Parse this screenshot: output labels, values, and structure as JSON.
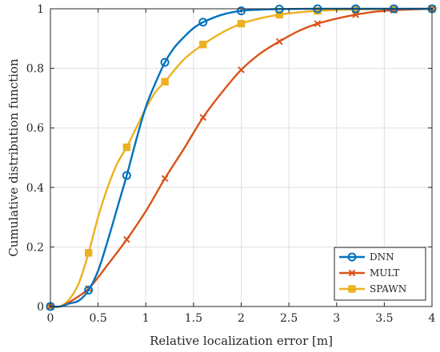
{
  "chart_data": {
    "type": "line",
    "title": "",
    "xlabel": "Relative localization error [m]",
    "ylabel": "Cumulative distribution function",
    "xlim": [
      0,
      4
    ],
    "ylim": [
      0,
      1
    ],
    "xticks": [
      0,
      0.5,
      1,
      1.5,
      2,
      2.5,
      3,
      3.5,
      4
    ],
    "xtick_labels": [
      "0",
      "0.5",
      "1",
      "1.5",
      "2",
      "2.5",
      "3",
      "3.5",
      "4"
    ],
    "yticks": [
      0,
      0.2,
      0.4,
      0.6,
      0.8,
      1
    ],
    "ytick_labels": [
      "0",
      "0.2",
      "0.4",
      "0.6",
      "0.8",
      "1"
    ],
    "grid": true,
    "legend_position": "bottom-right",
    "series": [
      {
        "name": "DNN",
        "color": "#0072BD",
        "marker": "circle",
        "x": [
          0,
          0.1,
          0.2,
          0.3,
          0.4,
          0.5,
          0.6,
          0.7,
          0.8,
          0.9,
          1.0,
          1.1,
          1.2,
          1.3,
          1.4,
          1.5,
          1.6,
          1.8,
          2.0,
          2.2,
          2.4,
          2.8,
          3.2,
          3.6,
          4.0
        ],
        "values": [
          0,
          0,
          0.01,
          0.02,
          0.055,
          0.12,
          0.22,
          0.33,
          0.44,
          0.56,
          0.67,
          0.75,
          0.82,
          0.87,
          0.905,
          0.935,
          0.955,
          0.98,
          0.993,
          0.997,
          0.999,
          1.0,
          1.0,
          1.0,
          1.0
        ],
        "marker_x": [
          0,
          0.4,
          0.8,
          1.2,
          1.6,
          2.0,
          2.4,
          2.8,
          3.2,
          3.6,
          4.0
        ],
        "marker_values": [
          0,
          0.055,
          0.44,
          0.82,
          0.955,
          0.993,
          0.999,
          1.0,
          1.0,
          1.0,
          1.0
        ]
      },
      {
        "name": "MULT",
        "color": "#D95319",
        "marker": "x",
        "x": [
          0,
          0.1,
          0.2,
          0.4,
          0.6,
          0.8,
          1.0,
          1.2,
          1.4,
          1.6,
          1.8,
          2.0,
          2.2,
          2.4,
          2.6,
          2.8,
          3.0,
          3.2,
          3.4,
          3.6,
          3.8,
          4.0
        ],
        "values": [
          0,
          0,
          0.015,
          0.06,
          0.14,
          0.225,
          0.32,
          0.43,
          0.53,
          0.635,
          0.72,
          0.795,
          0.85,
          0.89,
          0.925,
          0.95,
          0.967,
          0.98,
          0.99,
          0.995,
          0.998,
          1.0
        ],
        "marker_x": [
          0,
          0.4,
          0.8,
          1.2,
          1.6,
          2.0,
          2.4,
          2.8,
          3.2,
          3.6,
          4.0
        ],
        "marker_values": [
          0,
          0.06,
          0.225,
          0.43,
          0.635,
          0.795,
          0.89,
          0.95,
          0.98,
          0.995,
          1.0
        ]
      },
      {
        "name": "SPAWN",
        "color": "#EDB120",
        "marker": "square",
        "x": [
          0,
          0.1,
          0.2,
          0.3,
          0.4,
          0.5,
          0.6,
          0.7,
          0.8,
          0.9,
          1.0,
          1.1,
          1.2,
          1.4,
          1.6,
          1.8,
          2.0,
          2.2,
          2.4,
          2.6,
          2.8,
          3.0,
          3.2,
          3.6,
          4.0
        ],
        "values": [
          0,
          0,
          0.025,
          0.08,
          0.18,
          0.3,
          0.4,
          0.48,
          0.535,
          0.6,
          0.665,
          0.72,
          0.755,
          0.83,
          0.88,
          0.92,
          0.95,
          0.968,
          0.98,
          0.988,
          0.993,
          0.996,
          0.998,
          0.999,
          1.0
        ],
        "marker_x": [
          0,
          0.4,
          0.8,
          1.2,
          1.6,
          2.0,
          2.4,
          2.8,
          3.2,
          3.6,
          4.0
        ],
        "marker_values": [
          0,
          0.18,
          0.535,
          0.755,
          0.88,
          0.95,
          0.98,
          0.993,
          0.998,
          0.999,
          1.0
        ]
      }
    ]
  }
}
